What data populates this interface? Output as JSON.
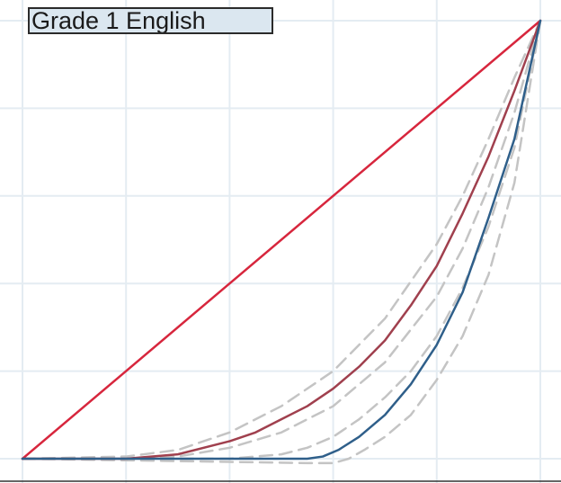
{
  "chart_data": {
    "type": "line",
    "title": "Grade 1 English",
    "xlabel": "",
    "ylabel": "",
    "xlim": [
      0,
      1
    ],
    "ylim": [
      0,
      1
    ],
    "grid": true,
    "x_gridlines": [
      0,
      0.2,
      0.4,
      0.6,
      0.8,
      1.0
    ],
    "y_gridlines": [
      0,
      0.2,
      0.4,
      0.6,
      0.8,
      1.0
    ],
    "series": [
      {
        "style": "solid",
        "color": "#d7263d",
        "x": [
          0,
          1
        ],
        "y": [
          0,
          1
        ]
      },
      {
        "style": "solid",
        "color": "#a0404e",
        "x": [
          0,
          0.2,
          0.3,
          0.4,
          0.45,
          0.5,
          0.55,
          0.6,
          0.65,
          0.7,
          0.75,
          0.8,
          0.85,
          0.9,
          0.95,
          1.0
        ],
        "y": [
          0,
          0,
          0.01,
          0.04,
          0.06,
          0.09,
          0.12,
          0.16,
          0.21,
          0.27,
          0.35,
          0.44,
          0.56,
          0.69,
          0.84,
          1.0
        ]
      },
      {
        "style": "solid",
        "color": "#2f5f8a",
        "x": [
          0,
          0.55,
          0.58,
          0.61,
          0.65,
          0.7,
          0.75,
          0.8,
          0.85,
          0.9,
          0.95,
          1.0
        ],
        "y": [
          0,
          0,
          0.005,
          0.02,
          0.05,
          0.1,
          0.17,
          0.26,
          0.38,
          0.55,
          0.73,
          1.0
        ]
      },
      {
        "style": "dashed",
        "color": "#c4c4c4",
        "x": [
          0,
          0.2,
          0.3,
          0.4,
          0.5,
          0.6,
          0.7,
          0.8,
          0.85,
          0.9,
          0.95,
          1.0
        ],
        "y": [
          0,
          0.005,
          0.02,
          0.06,
          0.12,
          0.2,
          0.32,
          0.49,
          0.6,
          0.73,
          0.87,
          1.0
        ]
      },
      {
        "style": "dashed",
        "color": "#c4c4c4",
        "x": [
          0,
          0.2,
          0.3,
          0.4,
          0.5,
          0.6,
          0.7,
          0.8,
          0.85,
          0.9,
          0.95,
          1.0
        ],
        "y": [
          0,
          0,
          0.005,
          0.025,
          0.06,
          0.12,
          0.22,
          0.37,
          0.48,
          0.62,
          0.79,
          1.0
        ]
      },
      {
        "style": "dashed",
        "color": "#c4c4c4",
        "x": [
          0,
          0.4,
          0.5,
          0.55,
          0.6,
          0.65,
          0.7,
          0.75,
          0.8,
          0.85,
          0.9,
          0.95,
          1.0
        ],
        "y": [
          0,
          0,
          0.01,
          0.025,
          0.05,
          0.09,
          0.14,
          0.2,
          0.28,
          0.39,
          0.53,
          0.71,
          1.0
        ]
      },
      {
        "style": "dashed",
        "color": "#c4c4c4",
        "x": [
          0,
          0.55,
          0.6,
          0.63,
          0.66,
          0.7,
          0.75,
          0.8,
          0.85,
          0.9,
          0.95,
          1.0
        ],
        "y": [
          0,
          -0.01,
          -0.01,
          0,
          0.02,
          0.05,
          0.1,
          0.18,
          0.28,
          0.42,
          0.63,
          1.0
        ]
      }
    ]
  }
}
